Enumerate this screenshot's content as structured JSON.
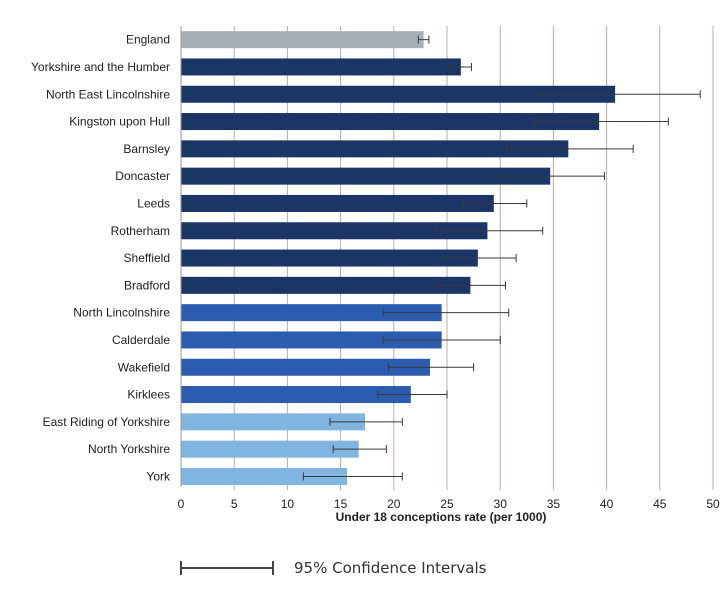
{
  "chart_data": {
    "type": "bar",
    "orientation": "horizontal",
    "xlabel": "Under 18 conceptions rate (per 1000)",
    "xlim": [
      0,
      50
    ],
    "xticks": [
      0,
      5,
      10,
      15,
      20,
      25,
      30,
      35,
      40,
      45,
      50
    ],
    "grid": true,
    "categories": [
      "England",
      "Yorkshire and the Humber",
      "North East Lincolnshire",
      "Kingston upon Hull",
      "Barnsley",
      "Doncaster",
      "Leeds",
      "Rotherham",
      "Sheffield",
      "Bradford",
      "North Lincolnshire",
      "Calderdale",
      "Wakefield",
      "Kirklees",
      "East Riding of Yorkshire",
      "North Yorkshire",
      "York"
    ],
    "values": [
      22.8,
      26.3,
      40.8,
      39.3,
      36.4,
      34.7,
      29.4,
      28.8,
      27.9,
      27.2,
      24.5,
      24.5,
      23.4,
      21.6,
      17.3,
      16.7,
      15.6
    ],
    "ci_low": [
      22.3,
      25.2,
      33.5,
      33.3,
      30.6,
      29.5,
      26.5,
      24.0,
      24.5,
      24.0,
      19.0,
      19.0,
      19.5,
      18.5,
      14.0,
      14.3,
      11.5
    ],
    "ci_high": [
      23.3,
      27.3,
      48.8,
      45.8,
      42.5,
      39.8,
      32.5,
      34.0,
      31.5,
      30.5,
      30.8,
      30.0,
      27.5,
      25.0,
      20.8,
      19.3,
      20.8
    ],
    "colors": [
      "#a7b0b6",
      "#1a3566",
      "#1a3566",
      "#1a3566",
      "#1a3566",
      "#1a3566",
      "#1a3566",
      "#1a3566",
      "#1a3566",
      "#1a3566",
      "#2b5cb0",
      "#2b5cb0",
      "#2b5cb0",
      "#2b5cb0",
      "#7fb5e0",
      "#7fb5e0",
      "#7fb5e0"
    ],
    "legend": {
      "label": "95% Confidence Intervals",
      "placement": "bottom"
    }
  }
}
